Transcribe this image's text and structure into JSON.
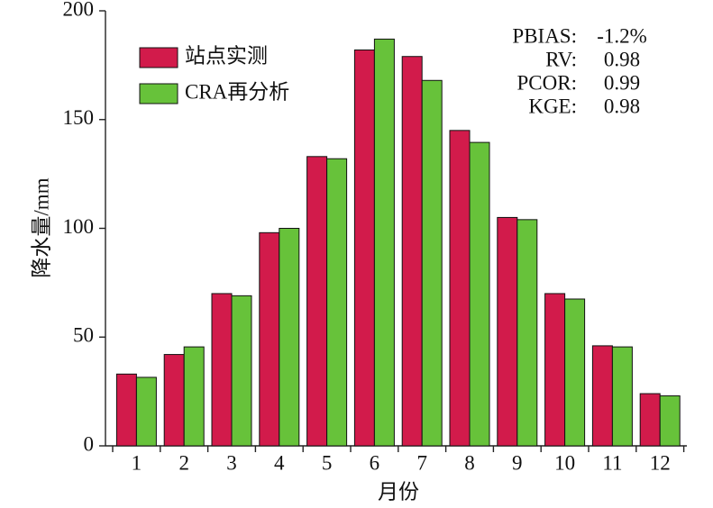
{
  "chart_data": {
    "type": "bar",
    "y_label": "降水量/mm",
    "x_label": "月份",
    "categories": [
      "1",
      "2",
      "3",
      "4",
      "5",
      "6",
      "7",
      "8",
      "9",
      "10",
      "11",
      "12"
    ],
    "series": [
      {
        "name": "站点实测",
        "color": "#d21b4b",
        "values": [
          33,
          42,
          70,
          98,
          133,
          182,
          179,
          145,
          105,
          70,
          46,
          24
        ]
      },
      {
        "name": "CRA再分析",
        "color": "#67c23a",
        "values": [
          31.5,
          45.5,
          69,
          100,
          132,
          187,
          168,
          139.5,
          104,
          67.5,
          45.5,
          23
        ]
      }
    ],
    "ylim": [
      0,
      200
    ],
    "yticks": [
      0,
      50,
      100,
      150,
      200
    ],
    "annotations": [
      {
        "label": "PBIAS:",
        "text": "-1.2%"
      },
      {
        "label": "RV:",
        "text": "0.98"
      },
      {
        "label": "PCOR:",
        "text": "0.99"
      },
      {
        "label": "KGE:",
        "text": "0.98"
      }
    ],
    "legend": "upper left"
  }
}
